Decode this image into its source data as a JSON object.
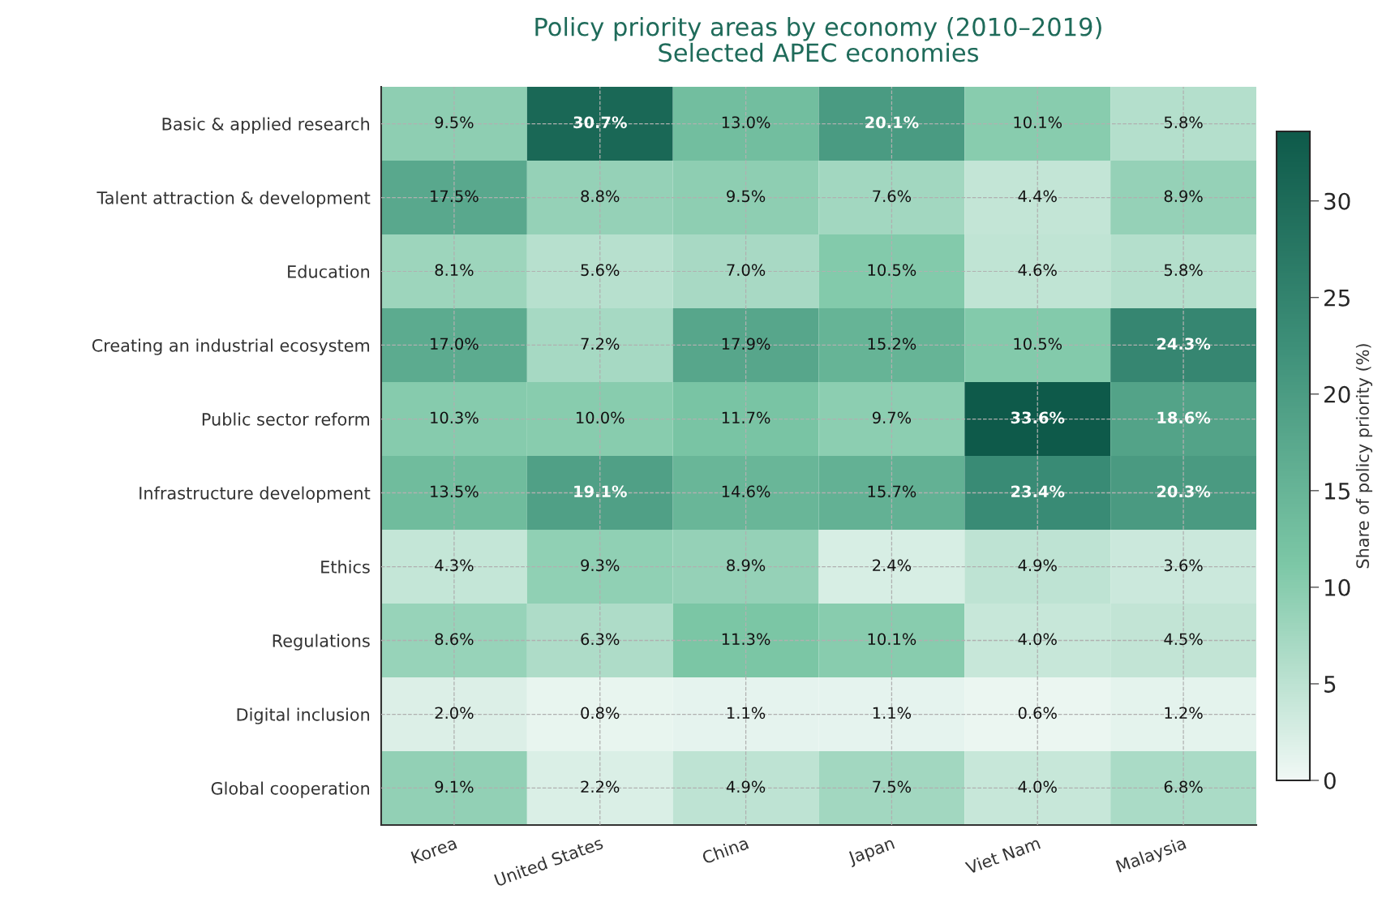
{
  "chart_data": {
    "type": "heatmap",
    "title": "Policy priority areas by economy (2010–2019)",
    "subtitle": "Selected APEC economies",
    "categories": [
      "Korea",
      "United States",
      "China",
      "Japan",
      "Viet Nam",
      "Malaysia"
    ],
    "y_categories": [
      "Basic & applied research",
      "Talent attraction & development",
      "Education",
      "Creating an industrial ecosystem",
      "Public sector reform",
      "Infrastructure development",
      "Ethics",
      "Regulations",
      "Digital inclusion",
      "Global cooperation"
    ],
    "cells": [
      [
        9.5,
        30.7,
        13.0,
        20.1,
        10.1,
        5.8
      ],
      [
        17.5,
        8.8,
        9.5,
        7.6,
        4.4,
        8.9
      ],
      [
        8.1,
        5.6,
        7.0,
        10.5,
        4.6,
        5.8
      ],
      [
        17.0,
        7.2,
        17.9,
        15.2,
        10.5,
        24.3
      ],
      [
        10.3,
        10.0,
        11.7,
        9.7,
        33.6,
        18.6
      ],
      [
        13.5,
        19.1,
        14.6,
        15.7,
        23.4,
        20.3
      ],
      [
        4.3,
        9.3,
        8.9,
        2.4,
        4.9,
        3.6
      ],
      [
        8.6,
        6.3,
        11.3,
        10.1,
        4.0,
        4.5
      ],
      [
        2.0,
        0.8,
        1.1,
        1.1,
        0.6,
        1.2
      ],
      [
        9.1,
        2.2,
        4.9,
        7.5,
        4.0,
        6.8
      ]
    ],
    "cell_labels": [
      [
        "9.5%",
        "30.7%",
        "13.0%",
        "20.1%",
        "10.1%",
        "5.8%"
      ],
      [
        "17.5%",
        "8.8%",
        "9.5%",
        "7.6%",
        "4.4%",
        "8.9%"
      ],
      [
        "8.1%",
        "5.6%",
        "7.0%",
        "10.5%",
        "4.6%",
        "5.8%"
      ],
      [
        "17.0%",
        "7.2%",
        "17.9%",
        "15.2%",
        "10.5%",
        "24.3%"
      ],
      [
        "10.3%",
        "10.0%",
        "11.7%",
        "9.7%",
        "33.6%",
        "18.6%"
      ],
      [
        "13.5%",
        "19.1%",
        "14.6%",
        "15.7%",
        "23.4%",
        "20.3%"
      ],
      [
        "4.3%",
        "9.3%",
        "8.9%",
        "2.4%",
        "4.9%",
        "3.6%"
      ],
      [
        "8.6%",
        "6.3%",
        "11.3%",
        "10.1%",
        "4.0%",
        "4.5%"
      ],
      [
        "2.0%",
        "0.8%",
        "1.1%",
        "1.1%",
        "0.6%",
        "1.2%"
      ],
      [
        "9.1%",
        "2.2%",
        "4.9%",
        "7.5%",
        "4.0%",
        "6.8%"
      ]
    ],
    "clim": [
      0,
      33.6
    ],
    "cticks": [
      0,
      5,
      10,
      15,
      20,
      25,
      30
    ],
    "clabel": "Share of policy priority (%)",
    "grid": true
  }
}
